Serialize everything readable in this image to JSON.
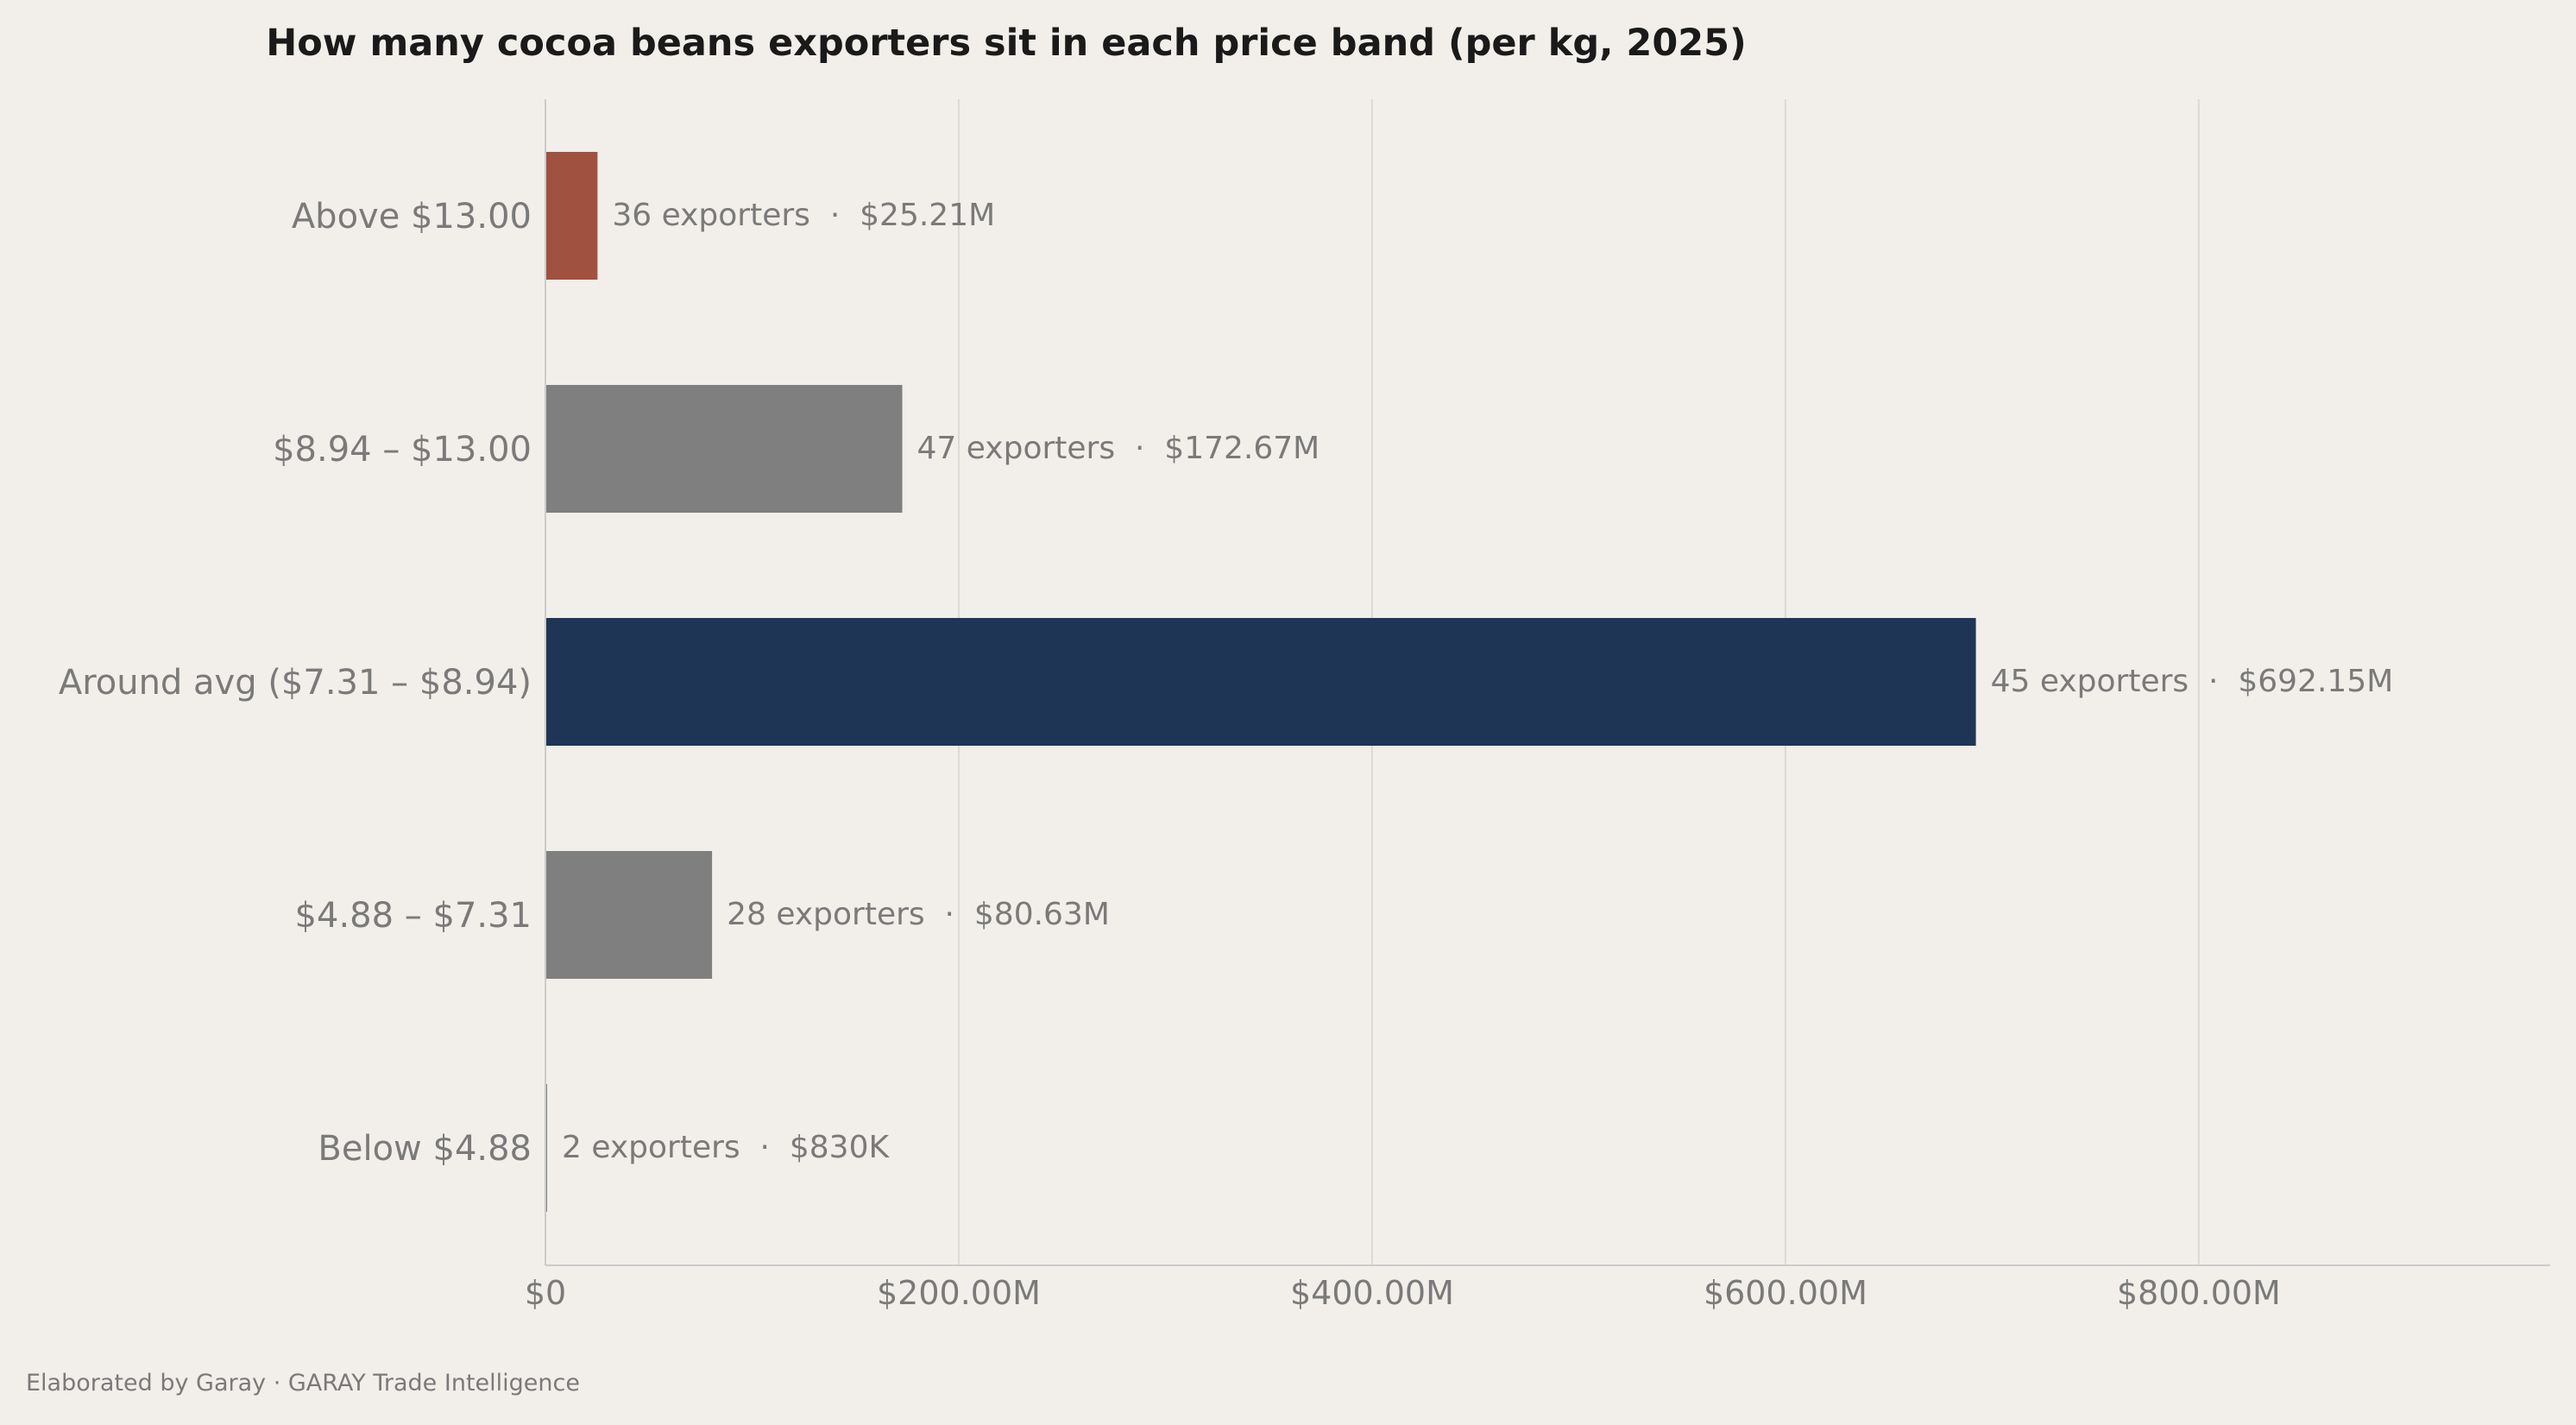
{
  "chart_data": {
    "type": "bar",
    "orientation": "horizontal",
    "title": "How many cocoa beans exporters sit in each price band (per kg, 2025)",
    "xlabel": "",
    "ylabel": "",
    "categories": [
      "Above $13.00",
      "$8.94 – $13.00",
      "Around avg ($7.31 – $8.94)",
      "$4.88 – $7.31",
      "Below $4.88"
    ],
    "values": [
      25.21,
      172.67,
      692.15,
      80.63,
      0.83
    ],
    "value_unit": "USD millions",
    "exporters": [
      36,
      47,
      45,
      28,
      2
    ],
    "data_labels": [
      "36 exporters  ·  $25.21M",
      "47 exporters  ·  $172.67M",
      "45 exporters  ·  $692.15M",
      "28 exporters  ·  $80.63M",
      "2 exporters  ·  $830K"
    ],
    "bar_colors": [
      "#a15140",
      "#7f7f7f",
      "#1e3556",
      "#7f7f7f",
      "#7f7f7f"
    ],
    "xlim": [
      0,
      970
    ],
    "xticks": [
      0,
      200,
      400,
      600,
      800
    ],
    "xtick_labels": [
      "$0",
      "$200.00M",
      "$400.00M",
      "$600.00M",
      "$800.00M"
    ],
    "grid": "vertical",
    "legend": "none"
  },
  "footer": {
    "credit": "Elaborated by Garay  ·  GARAY Trade Intelligence"
  },
  "colors": {
    "background": "#f2eeea",
    "grid": "#dcdad6",
    "axis": "#cccccc",
    "muted_text": "#7a7a7a",
    "title_text": "#1a1a1a"
  }
}
